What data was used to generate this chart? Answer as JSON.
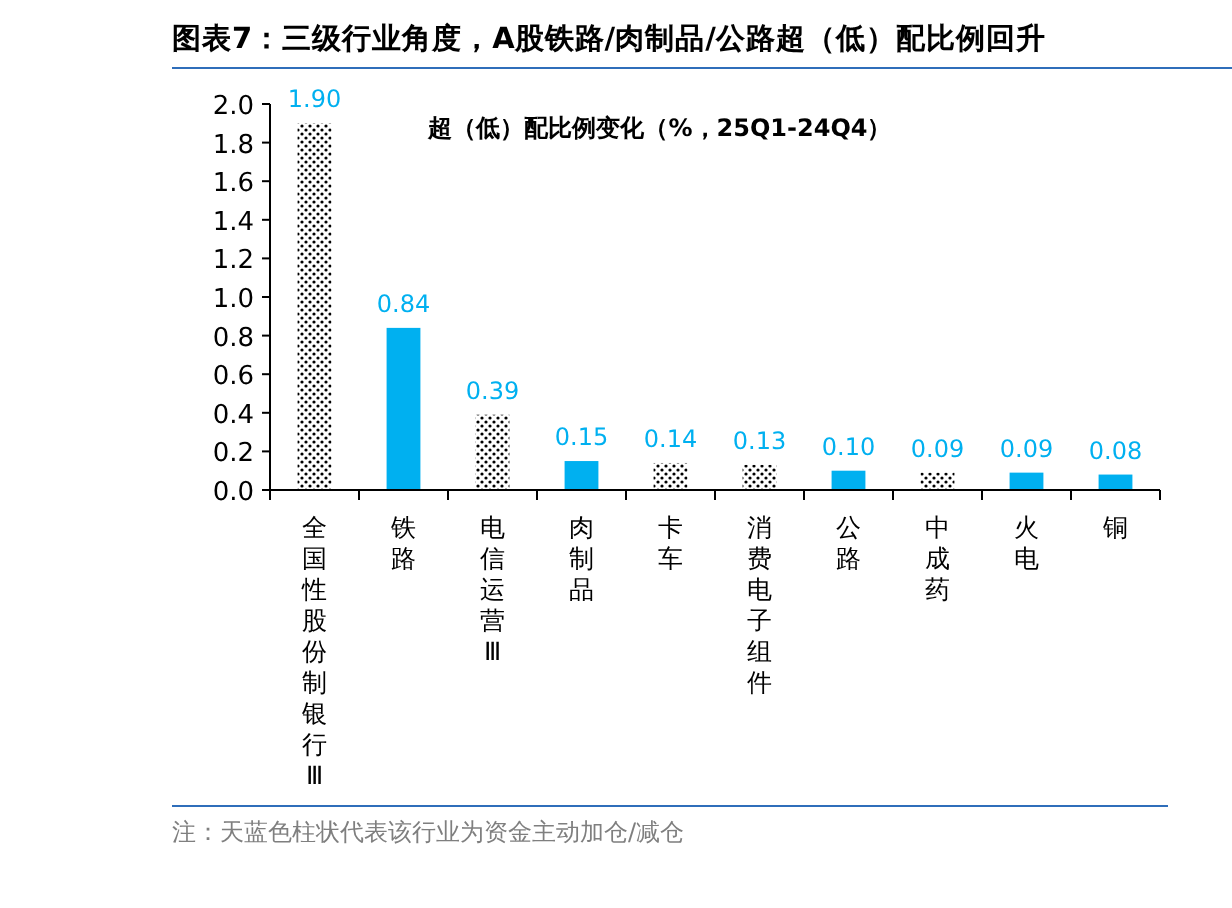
{
  "chart_data": {
    "type": "bar",
    "title": "图表7：三级行业角度，A股铁路/肉制品/公路超（低）配比例回升",
    "subtitle": "超（低）配比例变化（%，25Q1-24Q4）",
    "categories": [
      "全国性股份制银行Ⅲ",
      "铁路",
      "电信运营Ⅲ",
      "肉制品",
      "卡车",
      "消费电子组件",
      "公路",
      "中成药",
      "火电",
      "铜"
    ],
    "values": [
      1.9,
      0.84,
      0.39,
      0.15,
      0.14,
      0.13,
      0.1,
      0.09,
      0.09,
      0.08
    ],
    "colors": [
      "#000000",
      "#00b0f0",
      "#000000",
      "#00b0f0",
      "#000000",
      "#000000",
      "#00b0f0",
      "#000000",
      "#00b0f0",
      "#00b0f0"
    ],
    "value_labels": [
      "1.90",
      "0.84",
      "0.39",
      "0.15",
      "0.14",
      "0.13",
      "0.10",
      "0.09",
      "0.09",
      "0.08"
    ],
    "ylim": [
      0,
      2
    ],
    "yticks": [
      {
        "value": 0,
        "label": "0.0"
      },
      {
        "value": 0.2,
        "label": "0.2"
      },
      {
        "value": 0.4,
        "label": "0.4"
      },
      {
        "value": 0.6,
        "label": "0.6"
      },
      {
        "value": 0.8,
        "label": "0.8"
      },
      {
        "value": 1,
        "label": "1.0"
      },
      {
        "value": 1.2,
        "label": "1.2"
      },
      {
        "value": 1.4,
        "label": "1.4"
      },
      {
        "value": 1.6,
        "label": "1.6"
      },
      {
        "value": 1.8,
        "label": "1.8"
      },
      {
        "value": 2,
        "label": "2.0"
      }
    ],
    "grid": false,
    "annotations": [
      "注：天蓝色柱状代表该行业为资金主动加仓/减仓"
    ]
  }
}
